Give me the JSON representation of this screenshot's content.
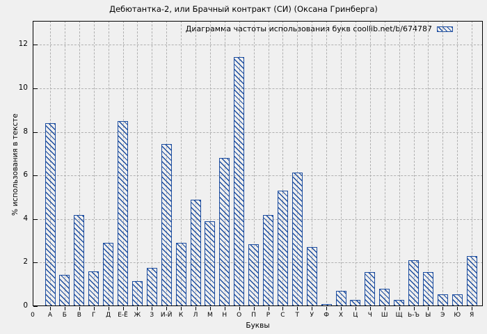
{
  "window": {
    "background": "#f0f0f0"
  },
  "chart_data": {
    "type": "bar",
    "title": "Дебютантка-2, или Брачный контракт (СИ) (Оксана Гринберга)",
    "legend": "Диаграмма частоты использования букв coollib.net/b/674787",
    "legend_position": "top-right",
    "xlabel": "Буквы",
    "ylabel": "% использования в тексте",
    "origin_label": "0",
    "categories": [
      "А",
      "Б",
      "В",
      "Г",
      "Д",
      "Е-Ё",
      "Ж",
      "З",
      "И-Й",
      "К",
      "Л",
      "М",
      "Н",
      "О",
      "П",
      "Р",
      "С",
      "Т",
      "У",
      "Ф",
      "Х",
      "Ц",
      "Ч",
      "Ш",
      "Щ",
      "Ь-Ъ",
      "Ы",
      "Э",
      "Ю",
      "Я"
    ],
    "values": [
      8.4,
      1.45,
      4.2,
      1.6,
      2.9,
      8.5,
      1.15,
      1.75,
      7.45,
      2.9,
      4.9,
      3.9,
      6.8,
      11.45,
      2.85,
      4.2,
      5.3,
      6.15,
      2.7,
      0.1,
      0.7,
      0.3,
      1.55,
      0.8,
      0.3,
      2.1,
      1.55,
      0.55,
      0.55,
      2.3
    ],
    "yticks": [
      0,
      2,
      4,
      6,
      8,
      10,
      12
    ],
    "ylim": [
      0,
      13.1
    ],
    "grid": true,
    "bar_color": "#1b4c9f",
    "bar_fill": "diagonal-hatch",
    "grid_color": "#b0b0b0",
    "axis_color": "#000000"
  }
}
